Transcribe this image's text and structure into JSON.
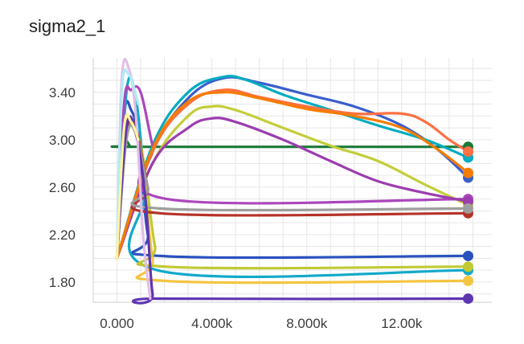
{
  "chart_data": {
    "type": "line",
    "title": "sigma2_1",
    "xlabel": "",
    "ylabel": "",
    "xlim": [
      -1000,
      15800
    ],
    "ylim": [
      1.63,
      3.69
    ],
    "x_ticks": [
      0,
      4000,
      8000,
      12000
    ],
    "x_tick_labels": [
      "0.000",
      "4.000k",
      "8.000k",
      "12.00k"
    ],
    "y_ticks": [
      1.8,
      2.2,
      2.6,
      3.0,
      3.4
    ],
    "y_tick_labels": [
      "1.80",
      "2.20",
      "2.60",
      "3.00",
      "3.40"
    ],
    "grid": true,
    "series": [
      {
        "color": "#1b7a3a",
        "x": [
          0,
          300,
          600,
          1000,
          14800
        ],
        "y": [
          2.0,
          2.9,
          2.94,
          2.94,
          2.94
        ]
      },
      {
        "color": "#2a52be",
        "x": [
          0,
          300,
          600,
          900,
          1300,
          1800,
          14800
        ],
        "y": [
          2.0,
          3.2,
          3.25,
          3.0,
          2.2,
          2.02,
          2.02
        ]
      },
      {
        "color": "#3a5fcd",
        "x": [
          0,
          1500,
          3000,
          4500,
          6000,
          8000,
          10000,
          12000,
          13500,
          14800
        ],
        "y": [
          2.0,
          2.9,
          3.35,
          3.52,
          3.48,
          3.38,
          3.28,
          3.12,
          2.92,
          2.68
        ]
      },
      {
        "color": "#12a9c9",
        "x": [
          0,
          400,
          800,
          1200,
          1700,
          14800
        ],
        "y": [
          2.0,
          3.4,
          3.35,
          2.6,
          1.9,
          1.9
        ]
      },
      {
        "color": "#00acc1",
        "x": [
          0,
          1500,
          3000,
          4500,
          5500,
          7000,
          9000,
          11000,
          13000,
          14800
        ],
        "y": [
          2.0,
          2.95,
          3.4,
          3.53,
          3.5,
          3.38,
          3.25,
          3.12,
          3.0,
          2.85
        ]
      },
      {
        "color": "#f4c542",
        "x": [
          0,
          300,
          700,
          1100,
          1500,
          2000,
          14800
        ],
        "y": [
          2.0,
          3.0,
          3.1,
          2.8,
          2.0,
          1.81,
          1.81
        ]
      },
      {
        "color": "#c0ca33",
        "x": [
          0,
          300,
          700,
          1100,
          1600,
          2000,
          14800
        ],
        "y": [
          2.0,
          3.05,
          3.1,
          2.85,
          2.1,
          1.93,
          1.93
        ]
      },
      {
        "color": "#c4cd3a",
        "x": [
          0,
          1500,
          3000,
          4000,
          5000,
          7000,
          9000,
          11000,
          13000,
          14800
        ],
        "y": [
          2.0,
          2.8,
          3.2,
          3.28,
          3.25,
          3.1,
          2.95,
          2.82,
          2.62,
          2.45
        ]
      },
      {
        "color": "#ab47bc",
        "x": [
          0,
          300,
          600,
          1000,
          1500,
          2100,
          14800
        ],
        "y": [
          2.0,
          3.3,
          3.42,
          3.4,
          2.95,
          2.5,
          2.5
        ]
      },
      {
        "color": "#9c3dae",
        "x": [
          0,
          1500,
          3000,
          4000,
          5000,
          7000,
          9000,
          11000,
          13000,
          14800
        ],
        "y": [
          2.0,
          2.8,
          3.1,
          3.18,
          3.15,
          3.0,
          2.82,
          2.65,
          2.55,
          2.48
        ]
      },
      {
        "color": "#ff7043",
        "x": [
          0,
          1500,
          3000,
          4500,
          6000,
          8000,
          10000,
          12000,
          13000,
          14000,
          14800
        ],
        "y": [
          2.0,
          2.9,
          3.3,
          3.42,
          3.36,
          3.28,
          3.22,
          3.22,
          3.15,
          3.0,
          2.9
        ]
      },
      {
        "color": "#f57c00",
        "x": [
          0,
          1500,
          3000,
          4500,
          6000,
          8000,
          10000,
          12000,
          13500,
          14800
        ],
        "y": [
          2.0,
          2.92,
          3.32,
          3.4,
          3.35,
          3.26,
          3.2,
          3.1,
          2.92,
          2.72
        ]
      },
      {
        "color": "#b5332a",
        "x": [
          0,
          400,
          800,
          1300,
          1800,
          14800
        ],
        "y": [
          2.0,
          3.05,
          3.1,
          2.6,
          2.38,
          2.38
        ]
      },
      {
        "color": "#9e9e9e",
        "x": [
          0,
          400,
          800,
          1300,
          1800,
          14800
        ],
        "y": [
          2.0,
          3.0,
          3.05,
          2.6,
          2.42,
          2.42
        ]
      },
      {
        "color": "#5e35b1",
        "x": [
          0,
          400,
          800,
          1200,
          1500,
          1800,
          14800
        ],
        "y": [
          2.0,
          3.1,
          3.05,
          2.5,
          1.7,
          1.66,
          1.66
        ]
      },
      {
        "color": "#e1bee7",
        "x": [
          0,
          200,
          500,
          800,
          1100,
          1400
        ],
        "y": [
          2.0,
          3.5,
          3.6,
          3.2,
          2.2,
          1.66
        ]
      },
      {
        "color": "#b2ebf2",
        "x": [
          0,
          200,
          500,
          900
        ],
        "y": [
          2.0,
          3.4,
          3.55,
          3.3
        ]
      },
      {
        "color": "#fff59d",
        "x": [
          0,
          300,
          600,
          900
        ],
        "y": [
          2.0,
          3.1,
          3.15,
          3.0
        ]
      }
    ]
  }
}
